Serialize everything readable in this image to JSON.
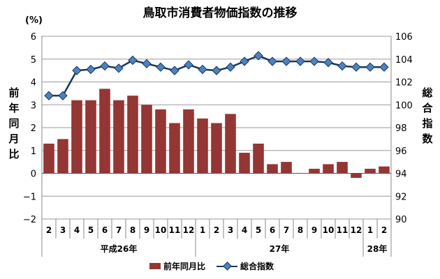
{
  "chart_data": {
    "type": "bar+line",
    "title": "鳥取市消費者物価指数の推移",
    "y_left_unit": "(%)",
    "y_left_label": "前年同月比",
    "y_right_label": "総合指数",
    "y_left_range": [
      -2,
      6
    ],
    "y_left_ticks": [
      "6",
      "5",
      "4",
      "3",
      "2",
      "1",
      "0",
      "−1",
      "−2"
    ],
    "y_right_range": [
      90,
      106
    ],
    "y_right_ticks": [
      "106",
      "104",
      "102",
      "100",
      "98",
      "96",
      "94",
      "92",
      "90"
    ],
    "categories": [
      "2",
      "3",
      "4",
      "5",
      "6",
      "7",
      "8",
      "9",
      "10",
      "11",
      "12",
      "1",
      "2",
      "3",
      "4",
      "5",
      "6",
      "7",
      "8",
      "9",
      "10",
      "11",
      "12",
      "1",
      "2"
    ],
    "year_groups": [
      {
        "label": "平成26年",
        "count": 11
      },
      {
        "label": "27年",
        "count": 12
      },
      {
        "label": "28年",
        "count": 2
      }
    ],
    "series": [
      {
        "name": "前年同月比",
        "type": "bar",
        "axis": "left",
        "color": "#943634",
        "values": [
          1.3,
          1.5,
          3.2,
          3.2,
          3.7,
          3.2,
          3.4,
          3.0,
          2.8,
          2.2,
          2.8,
          2.4,
          2.2,
          2.6,
          0.9,
          1.3,
          0.4,
          0.5,
          0.0,
          0.2,
          0.4,
          0.5,
          -0.2,
          0.2,
          0.3
        ]
      },
      {
        "name": "総合指数",
        "type": "line",
        "axis": "right",
        "color": "#17375e",
        "marker_color": "#4f81bd",
        "values": [
          100.8,
          100.8,
          103.0,
          103.1,
          103.4,
          103.2,
          103.9,
          103.6,
          103.3,
          103.0,
          103.5,
          103.1,
          103.0,
          103.3,
          103.8,
          104.3,
          103.8,
          103.8,
          103.8,
          103.8,
          103.7,
          103.4,
          103.3,
          103.3,
          103.3
        ]
      }
    ],
    "grid": true,
    "legend_position": "bottom"
  }
}
